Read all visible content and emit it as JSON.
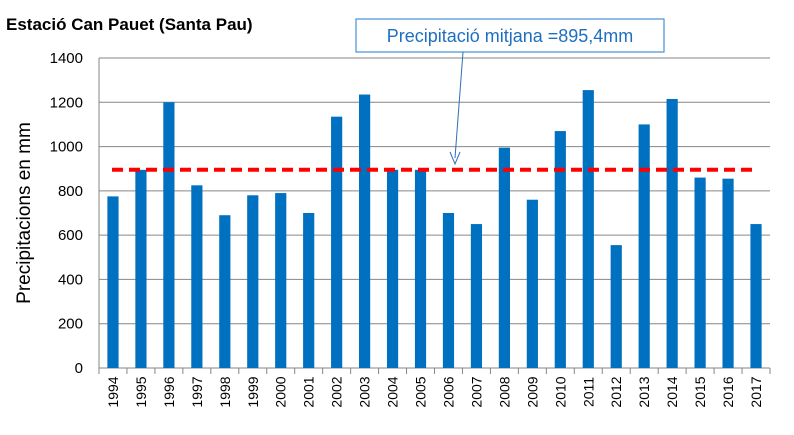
{
  "chart_data": {
    "type": "bar",
    "title": "Estació Can Pauet (Santa Pau)",
    "xlabel": "",
    "ylabel": "Precipitacions en mm",
    "ylim": [
      0,
      1400
    ],
    "yticks": [
      0,
      200,
      400,
      600,
      800,
      1000,
      1200,
      1400
    ],
    "grid": "horizontal",
    "bar_color": "#0070c0",
    "categories": [
      "1994",
      "1995",
      "1996",
      "1997",
      "1998",
      "1999",
      "2000",
      "2001",
      "2002",
      "2003",
      "2004",
      "2005",
      "2006",
      "2007",
      "2008",
      "2009",
      "2010",
      "2011",
      "2012",
      "2013",
      "2014",
      "2015",
      "2016",
      "2017"
    ],
    "values": [
      775,
      895,
      1200,
      825,
      690,
      780,
      790,
      700,
      1135,
      1235,
      895,
      895,
      700,
      650,
      995,
      760,
      1070,
      1255,
      555,
      1100,
      1215,
      860,
      855,
      650
    ],
    "reference_line": {
      "value": 895.4,
      "color": "#ff0000",
      "style": "dashed",
      "label": "Precipitació mitjana =895,4mm",
      "label_color": "#1f6fc0"
    }
  }
}
